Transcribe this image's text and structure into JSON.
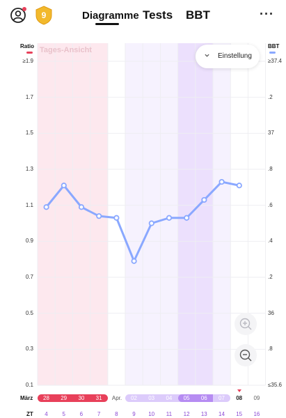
{
  "header": {
    "tabs": [
      {
        "label": "Diagramme",
        "active": true
      },
      {
        "label": "Tests",
        "active": false
      },
      {
        "label": "BBT",
        "active": false
      }
    ],
    "level_badge": "9",
    "more_label": "···"
  },
  "chart_header": {
    "left_legend": "Ratio",
    "right_legend": "BBT",
    "view_label": "Tages-Ansicht",
    "settings_label": "Einstellung"
  },
  "colors": {
    "ratio": "#e8405a",
    "bbt": "#8aa8ff",
    "period": "#fde8ee",
    "fertile": "#f6f2fe",
    "ovulation": "#ece0fd",
    "purple_text": "#8a48d4"
  },
  "y_axis_left": [
    "≥1.9",
    "1.7",
    "1.5",
    "1.3",
    "1.1",
    "0.9",
    "0.7",
    "0.5",
    "0.3",
    "0.1"
  ],
  "y_axis_right": [
    "≥37.4",
    ".2",
    "37",
    ".8",
    ".6",
    ".4",
    ".2",
    "36",
    ".8",
    "≤35.6"
  ],
  "x_axis": {
    "month_label": "März",
    "zt_label": "ZT",
    "april_label": "Apr.",
    "dates": [
      {
        "label": "28",
        "phase": "period"
      },
      {
        "label": "29",
        "phase": "period"
      },
      {
        "label": "30",
        "phase": "period"
      },
      {
        "label": "31",
        "phase": "period"
      },
      {
        "label": "",
        "phase": "none"
      },
      {
        "label": "02",
        "phase": "fertile"
      },
      {
        "label": "03",
        "phase": "fertile"
      },
      {
        "label": "04",
        "phase": "fertile"
      },
      {
        "label": "05",
        "phase": "ovulation"
      },
      {
        "label": "06",
        "phase": "ovulation"
      },
      {
        "label": "07",
        "phase": "fertile"
      },
      {
        "label": "08",
        "phase": "today"
      },
      {
        "label": "09",
        "phase": "none"
      }
    ],
    "zt": [
      "4",
      "5",
      "6",
      "7",
      "8",
      "9",
      "10",
      "11",
      "12",
      "13",
      "14",
      "15",
      "16"
    ]
  },
  "chart_data": {
    "type": "line",
    "x": [
      "4",
      "5",
      "6",
      "7",
      "8",
      "9",
      "10",
      "11",
      "12",
      "13",
      "14",
      "15"
    ],
    "series": [
      {
        "name": "Ratio",
        "values": [
          1.09,
          1.21,
          1.09,
          1.04,
          1.03,
          0.79,
          1.0,
          1.03,
          1.03,
          1.13,
          1.23,
          1.21
        ]
      }
    ],
    "ylim": [
      0.1,
      1.9
    ],
    "grid": true
  }
}
